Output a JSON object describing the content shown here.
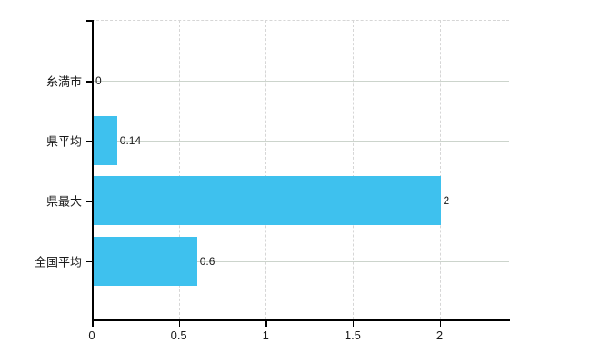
{
  "chart": {
    "background": "#ffffff",
    "colors": {
      "bar": "#3ec1ee",
      "axis": "#000000",
      "grid_horizontal": "#ccd4cc",
      "grid_vertical": "#d6d6d6",
      "text": "#1a1a1a"
    }
  },
  "chart_data": {
    "type": "bar",
    "orientation": "horizontal",
    "title": "",
    "xlabel": "",
    "ylabel": "",
    "categories": [
      "糸満市",
      "県平均",
      "県最大",
      "全国平均"
    ],
    "values": [
      0,
      0.14,
      2,
      0.6
    ],
    "value_labels": [
      "0",
      "0.14",
      "2",
      "0.6"
    ],
    "x_ticks": [
      0,
      0.5,
      1,
      1.5,
      2
    ],
    "x_tick_labels": [
      "0",
      "0.5",
      "1",
      "1.5",
      "2"
    ],
    "xlim": [
      0,
      2.4
    ],
    "grid": true,
    "legend_position": "none"
  }
}
